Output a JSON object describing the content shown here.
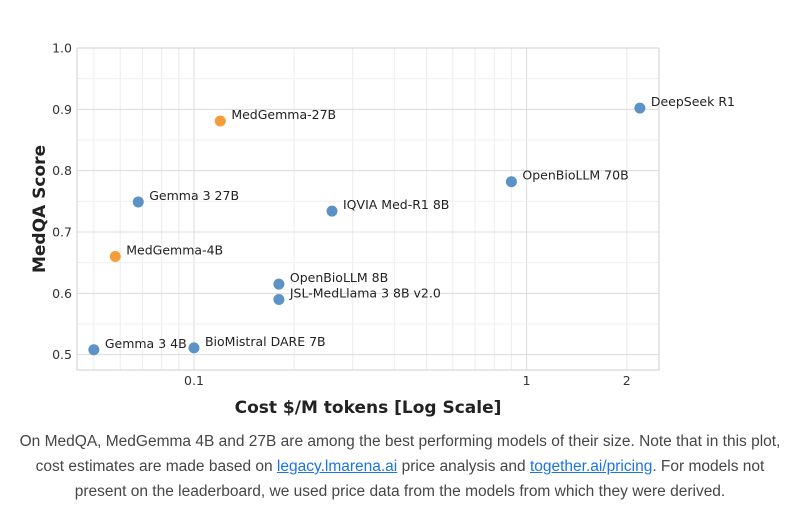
{
  "chart_data": {
    "type": "scatter",
    "title": "",
    "xlabel": "Cost $/M tokens [Log Scale]",
    "ylabel": "MedQA Score",
    "x_scale": "log",
    "xlim": [
      0.0445,
      2.5
    ],
    "ylim": [
      0.475,
      1.0
    ],
    "x_ticks": [
      {
        "value": 0.1,
        "label": "0.1"
      },
      {
        "value": 1,
        "label": "1"
      },
      {
        "value": 2,
        "label": "2"
      }
    ],
    "y_ticks": [
      {
        "value": 0.5,
        "label": "0.5"
      },
      {
        "value": 0.6,
        "label": "0.6"
      },
      {
        "value": 0.7,
        "label": "0.7"
      },
      {
        "value": 0.8,
        "label": "0.8"
      },
      {
        "value": 0.9,
        "label": "0.9"
      },
      {
        "value": 1.0,
        "label": "1.0"
      }
    ],
    "grid": true,
    "colors": {
      "medgemma": "#f59b3a",
      "other": "#5b93c6"
    },
    "points": [
      {
        "label": "Gemma 3 4B",
        "x": 0.05,
        "y": 0.508,
        "group": "other"
      },
      {
        "label": "MedGemma-4B",
        "x": 0.058,
        "y": 0.66,
        "group": "medgemma"
      },
      {
        "label": "Gemma 3 27B",
        "x": 0.068,
        "y": 0.749,
        "group": "other"
      },
      {
        "label": "BioMistral DARE 7B",
        "x": 0.1,
        "y": 0.511,
        "group": "other"
      },
      {
        "label": "MedGemma-27B",
        "x": 0.12,
        "y": 0.881,
        "group": "medgemma"
      },
      {
        "label": "OpenBioLLM 8B",
        "x": 0.18,
        "y": 0.615,
        "group": "other"
      },
      {
        "label": "JSL-MedLlama 3 8B v2.0",
        "x": 0.18,
        "y": 0.59,
        "group": "other"
      },
      {
        "label": "IQVIA Med-R1 8B",
        "x": 0.26,
        "y": 0.734,
        "group": "other"
      },
      {
        "label": "OpenBioLLM 70B",
        "x": 0.9,
        "y": 0.782,
        "group": "other"
      },
      {
        "label": "DeepSeek R1",
        "x": 2.19,
        "y": 0.902,
        "group": "other"
      }
    ]
  },
  "caption": {
    "text_1": "On MedQA, MedGemma 4B and 27B are among the best performing models of their size. Note that in this plot, cost estimates are made based on ",
    "link_1": "legacy.lmarena.ai",
    "text_2": " price analysis and ",
    "link_2": "together.ai/pricing",
    "text_3": ". For models not present on the leaderboard, we used price data from the models from which they were derived."
  }
}
